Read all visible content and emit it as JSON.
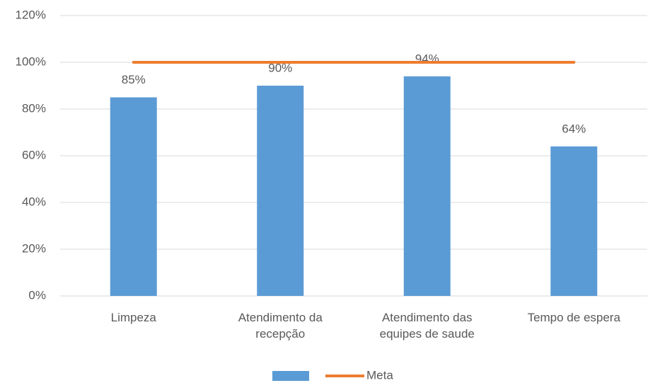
{
  "chart_data": {
    "type": "bar",
    "categories": [
      "Limpeza",
      "Atendimento da\nrecepção",
      "Atendimento das\nequipes de saude",
      "Tempo de espera"
    ],
    "series": [
      {
        "type": "bar",
        "color": "#5b9bd5",
        "values": [
          85,
          90,
          94,
          64
        ],
        "value_labels": [
          "85%",
          "90%",
          "94%",
          "64%"
        ]
      },
      {
        "type": "line",
        "name": "Meta",
        "color": "#ed7d31",
        "values": [
          100,
          100,
          100,
          100
        ]
      }
    ],
    "ylim": [
      0,
      120
    ],
    "yticks": [
      {
        "value": 0,
        "label": "0%"
      },
      {
        "value": 20,
        "label": "20%"
      },
      {
        "value": 40,
        "label": "40%"
      },
      {
        "value": 60,
        "label": "60%"
      },
      {
        "value": 80,
        "label": "80%"
      },
      {
        "value": 100,
        "label": "100%"
      },
      {
        "value": 120,
        "label": "120%"
      }
    ],
    "grid": true,
    "legend": "bottom"
  }
}
